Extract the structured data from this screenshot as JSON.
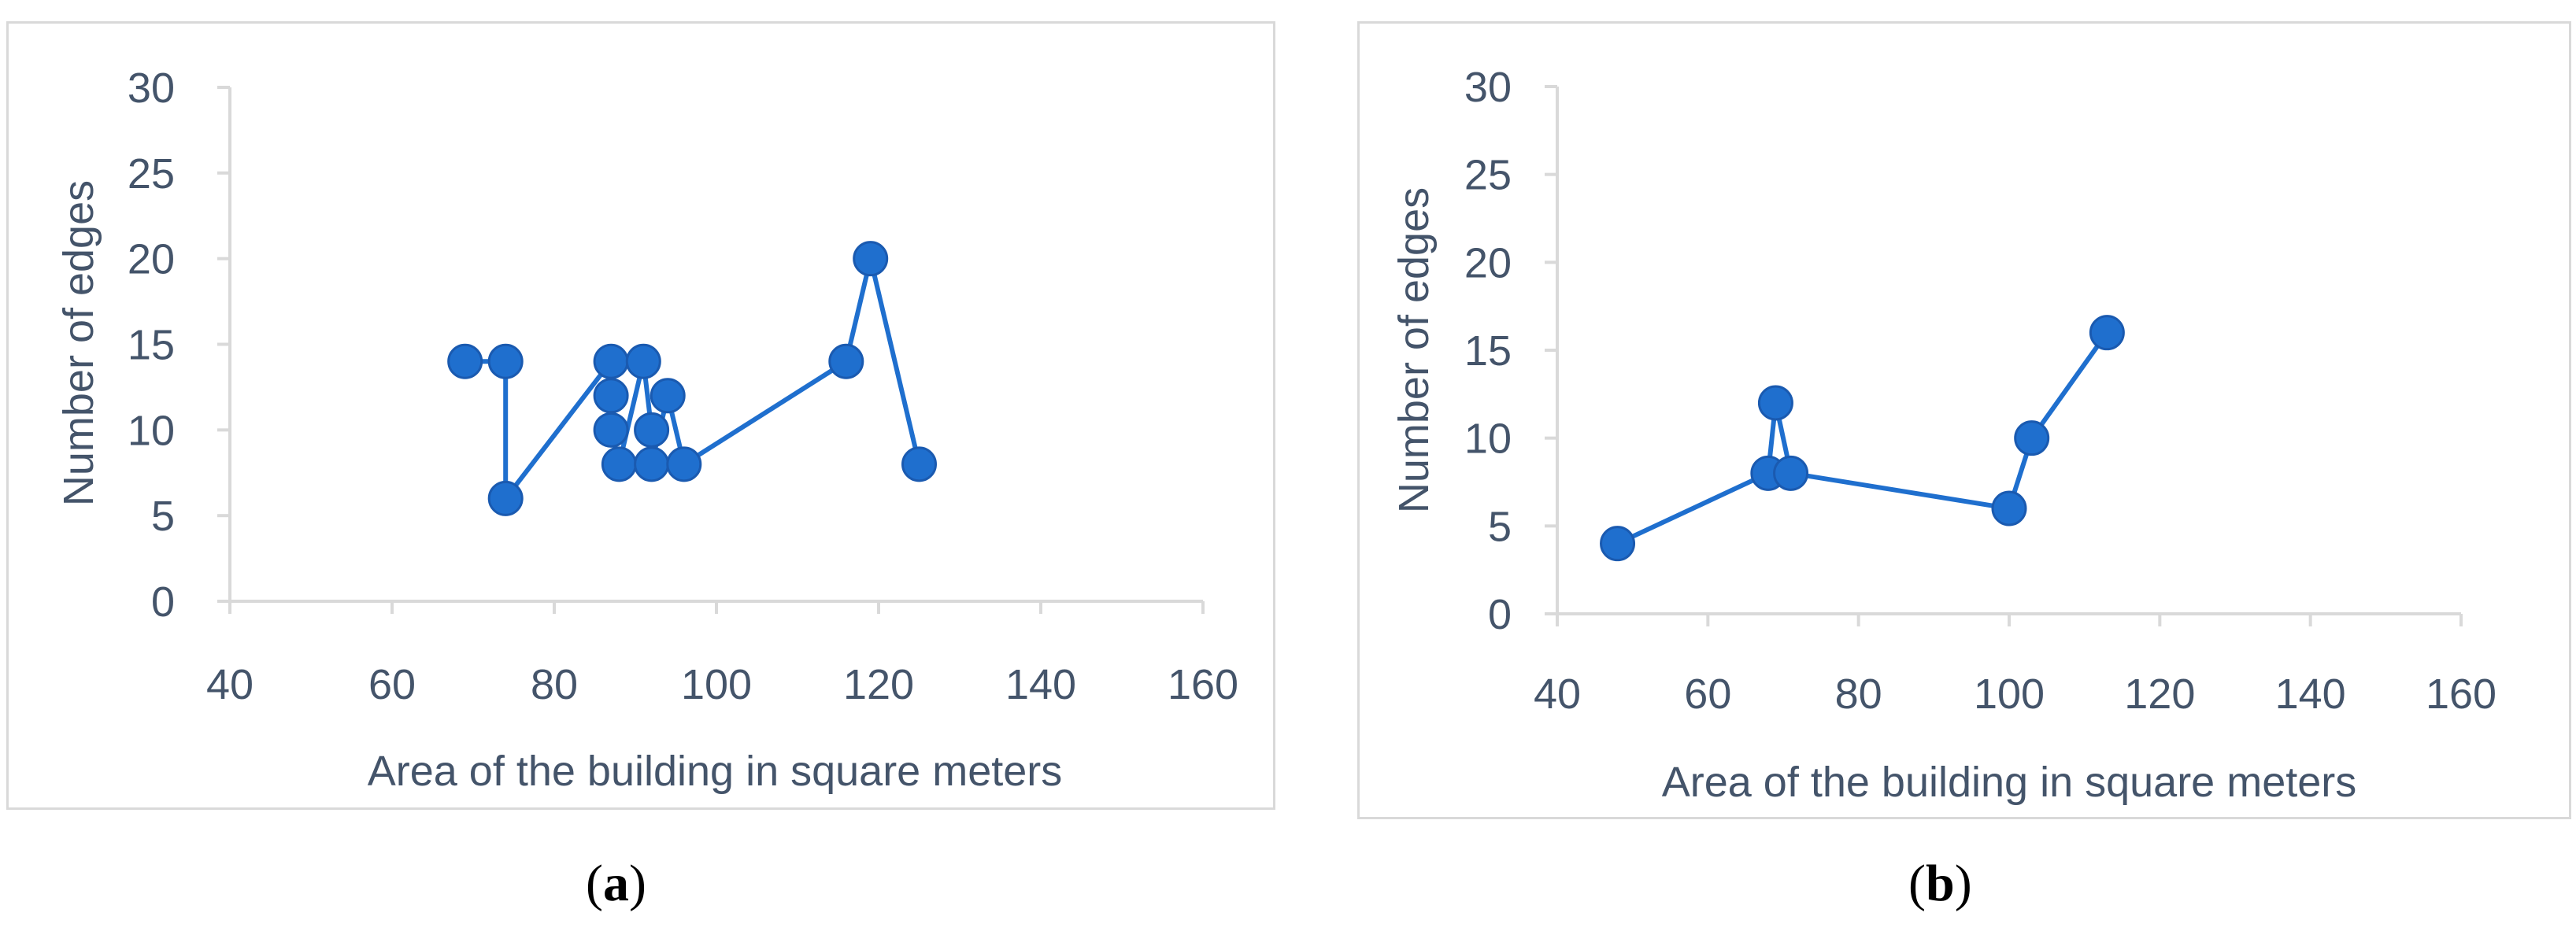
{
  "colors": {
    "series": "#1f6fce",
    "series_edge": "#1a5ab0",
    "axis": "#d9d9d9",
    "text": "#44546a",
    "frame": "#d9d9d9"
  },
  "captions": [
    {
      "open": "(",
      "letter": "a",
      "close": ")"
    },
    {
      "open": "(",
      "letter": "b",
      "close": ")"
    }
  ],
  "chart_data": [
    {
      "type": "line",
      "markers": true,
      "title": "",
      "xlabel": "Area of the building in square meters",
      "ylabel": "Number of edges",
      "xlim": [
        40,
        160
      ],
      "ylim": [
        0,
        30
      ],
      "xticks": [
        "40",
        "60",
        "80",
        "100",
        "120",
        "140",
        "160"
      ],
      "yticks": [
        "0",
        "5",
        "10",
        "15",
        "20",
        "25",
        "30"
      ],
      "grid": false,
      "legend": "none",
      "series": [
        {
          "points": [
            [
              69,
              14
            ],
            [
              74,
              14
            ],
            [
              74,
              6
            ],
            [
              87,
              14
            ],
            [
              87,
              12
            ],
            [
              87,
              10
            ],
            [
              88,
              8
            ],
            [
              91,
              14
            ],
            [
              92,
              10
            ],
            [
              92,
              8
            ],
            [
              94,
              12
            ],
            [
              96,
              8
            ],
            [
              116,
              14
            ],
            [
              119,
              20
            ],
            [
              125,
              8
            ]
          ]
        }
      ]
    },
    {
      "type": "line",
      "markers": true,
      "title": "",
      "xlabel": "Area of the building in square meters",
      "ylabel": "Number of edges",
      "xlim": [
        40,
        160
      ],
      "ylim": [
        0,
        30
      ],
      "xticks": [
        "40",
        "60",
        "80",
        "100",
        "120",
        "140",
        "160"
      ],
      "yticks": [
        "0",
        "5",
        "10",
        "15",
        "20",
        "25",
        "30"
      ],
      "grid": false,
      "legend": "none",
      "series": [
        {
          "points": [
            [
              48,
              4
            ],
            [
              68,
              8
            ],
            [
              69,
              12
            ],
            [
              71,
              8
            ],
            [
              100,
              6
            ],
            [
              103,
              10
            ],
            [
              113,
              16
            ]
          ]
        }
      ]
    }
  ]
}
